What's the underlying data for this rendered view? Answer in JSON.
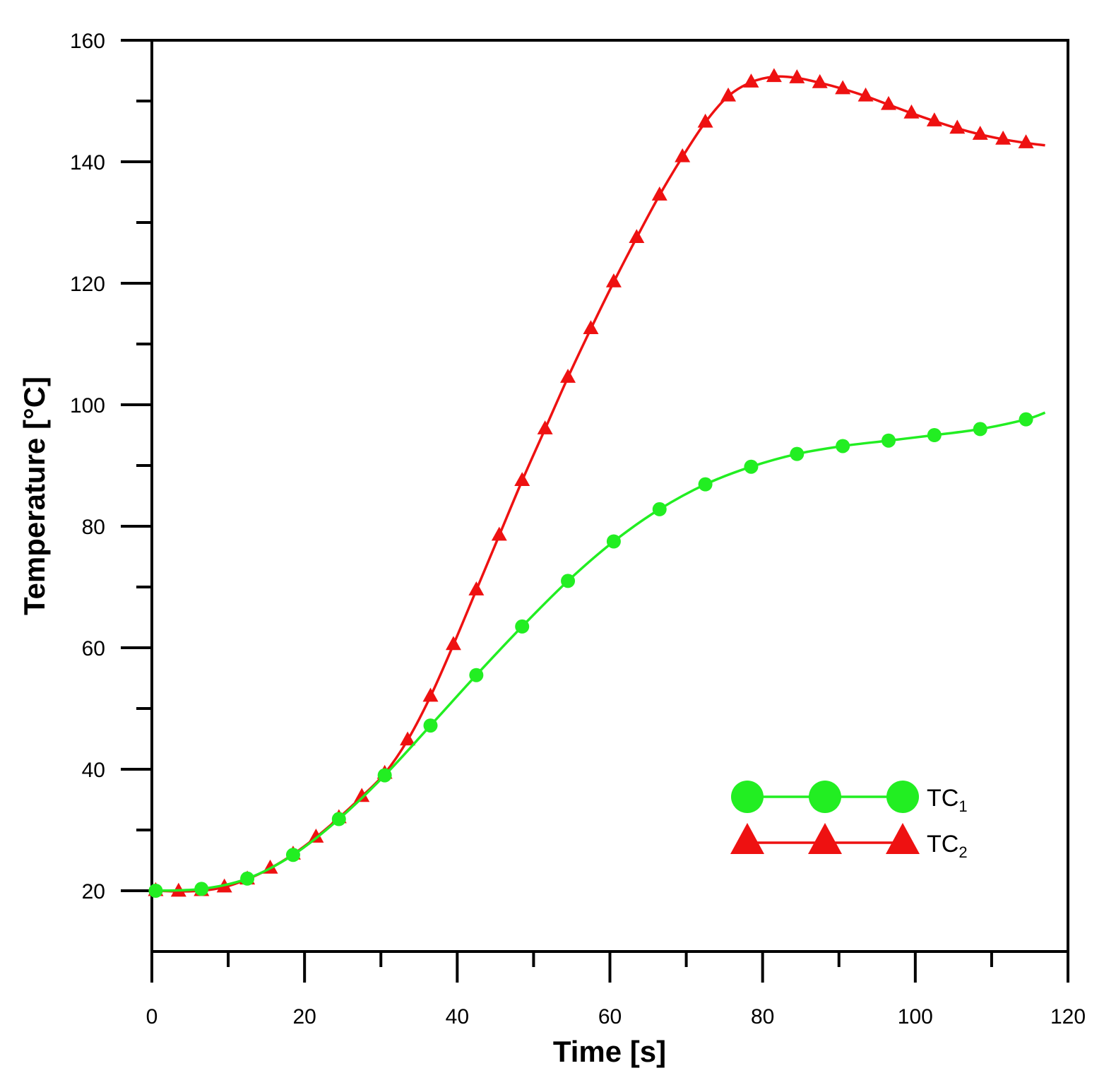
{
  "chart_data": {
    "type": "line",
    "title": "",
    "xlabel": "Time [s]",
    "ylabel": "Temperature [°C]",
    "xlim": [
      0,
      120
    ],
    "ylim": [
      10,
      160
    ],
    "x_ticks": [
      0,
      20,
      40,
      60,
      80,
      100,
      120
    ],
    "y_ticks": [
      20,
      40,
      60,
      80,
      100,
      120,
      140,
      160
    ],
    "grid": false,
    "legend_position": "bottom-right",
    "series": [
      {
        "name": "TC1",
        "label_main": "TC",
        "label_sub": "1",
        "color": "#22ee22",
        "marker": "circle",
        "x": [
          0.5,
          6.5,
          12.5,
          18.5,
          24.5,
          30.5,
          36.5,
          42.5,
          48.5,
          54.5,
          60.5,
          66.5,
          72.5,
          78.5,
          84.5,
          90.5,
          96.5,
          102.5,
          108.5,
          114.5,
          117.0
        ],
        "y": [
          20.0,
          20.3,
          22.0,
          25.9,
          31.8,
          39.0,
          47.2,
          55.5,
          63.5,
          71.0,
          77.5,
          82.8,
          86.9,
          89.8,
          91.9,
          93.2,
          94.1,
          95.0,
          96.0,
          97.6,
          98.7
        ]
      },
      {
        "name": "TC2",
        "label_main": "TC",
        "label_sub": "2",
        "color": "#ee1111",
        "marker": "triangle",
        "x": [
          0.5,
          3.5,
          6.5,
          9.5,
          12.5,
          15.5,
          18.5,
          21.5,
          24.5,
          27.5,
          30.5,
          33.5,
          36.5,
          39.5,
          42.5,
          45.5,
          48.5,
          51.5,
          54.5,
          57.5,
          60.5,
          63.5,
          66.5,
          69.5,
          72.5,
          75.5,
          78.5,
          81.5,
          84.5,
          87.5,
          90.5,
          93.5,
          96.5,
          99.5,
          102.5,
          105.5,
          108.5,
          111.5,
          114.5,
          117.0
        ],
        "y": [
          20.0,
          19.9,
          20.0,
          20.6,
          21.9,
          23.7,
          26.0,
          28.8,
          32.0,
          35.5,
          39.3,
          44.8,
          52.0,
          60.5,
          69.5,
          78.5,
          87.5,
          96.0,
          104.5,
          112.5,
          120.2,
          127.5,
          134.5,
          140.8,
          146.5,
          150.8,
          153.1,
          154.0,
          153.8,
          153.0,
          152.0,
          150.8,
          149.4,
          148.0,
          146.7,
          145.5,
          144.5,
          143.7,
          143.1,
          142.7
        ]
      }
    ]
  }
}
